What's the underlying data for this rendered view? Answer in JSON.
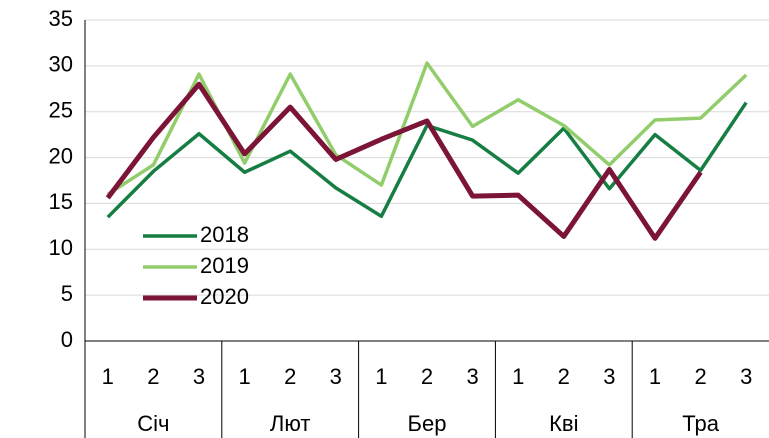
{
  "chart_data": {
    "type": "line",
    "categories": [
      "1",
      "2",
      "3",
      "1",
      "2",
      "3",
      "1",
      "2",
      "3",
      "1",
      "2",
      "3",
      "1",
      "2",
      "3"
    ],
    "category_groups": [
      "Січ",
      "Лют",
      "Бер",
      "Кві",
      "Тра"
    ],
    "series": [
      {
        "name": "2018",
        "color": "#167d43",
        "values": [
          13.5,
          18.5,
          22.6,
          18.4,
          20.7,
          16.7,
          13.6,
          23.5,
          21.9,
          18.3,
          23.2,
          16.6,
          22.5,
          18.6,
          26.0
        ]
      },
      {
        "name": "2019",
        "color": "#92cd6c",
        "values": [
          16.0,
          19.2,
          29.1,
          19.4,
          29.1,
          20.3,
          17.0,
          30.3,
          23.4,
          26.3,
          23.5,
          19.2,
          24.1,
          24.3,
          29.0
        ]
      },
      {
        "name": "2020",
        "color": "#7b1437",
        "values": [
          15.6,
          22.2,
          28.0,
          20.4,
          25.5,
          19.8,
          22.0,
          24.0,
          15.8,
          15.9,
          11.4,
          18.7,
          11.2,
          18.4,
          null
        ]
      }
    ],
    "ylim": [
      0,
      35
    ],
    "yticks": [
      0,
      5,
      10,
      15,
      20,
      25,
      30,
      35
    ],
    "grid": true
  }
}
